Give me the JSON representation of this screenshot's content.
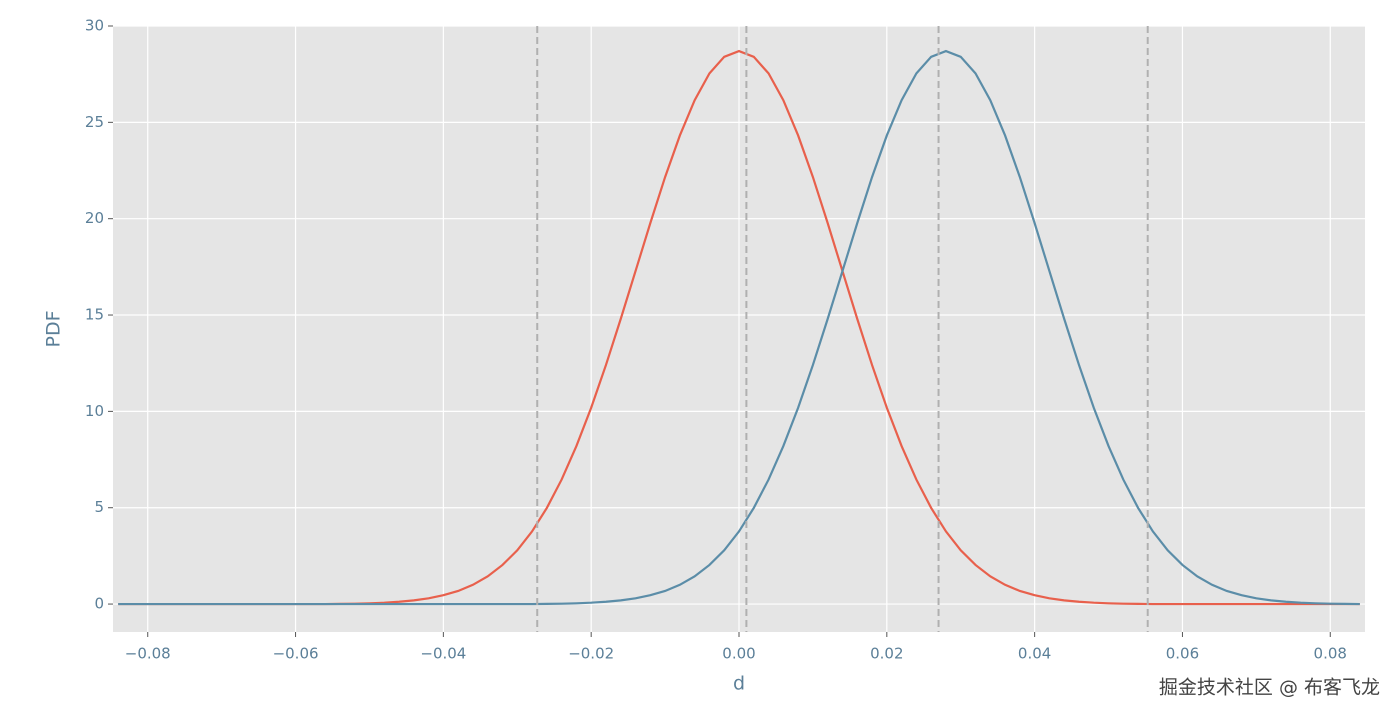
{
  "chart_data": {
    "type": "line",
    "x_label": "d",
    "y_label": "PDF",
    "watermark": "掘金技术社区 @ 布客飞龙",
    "x": [
      -0.084,
      -0.082,
      -0.08,
      -0.078,
      -0.076,
      -0.074,
      -0.072,
      -0.07,
      -0.068,
      -0.066,
      -0.064,
      -0.062,
      -0.06,
      -0.058,
      -0.056,
      -0.054,
      -0.052,
      -0.05,
      -0.048,
      -0.046,
      -0.044,
      -0.042,
      -0.04,
      -0.038,
      -0.036,
      -0.034,
      -0.032,
      -0.03,
      -0.028,
      -0.026,
      -0.024,
      -0.022,
      -0.02,
      -0.018,
      -0.016,
      -0.014,
      -0.012,
      -0.01,
      -0.008,
      -0.006,
      -0.004,
      -0.002,
      0,
      0.002,
      0.004,
      0.006,
      0.008,
      0.01,
      0.012,
      0.014,
      0.016,
      0.018,
      0.02,
      0.022,
      0.024,
      0.026,
      0.028,
      0.03,
      0.032,
      0.034,
      0.036,
      0.038,
      0.04,
      0.042,
      0.044,
      0.046,
      0.048,
      0.05,
      0.052,
      0.054,
      0.056,
      0.058,
      0.06,
      0.062,
      0.064,
      0.066,
      0.068,
      0.07,
      0.072,
      0.074,
      0.076,
      0.078,
      0.08,
      0.082,
      0.084
    ],
    "series": [
      {
        "color": "#e8604c",
        "values": [
          0,
          0,
          0,
          0,
          0,
          0,
          0,
          0,
          0,
          0,
          0,
          0,
          0,
          0,
          0,
          0.01,
          0.02,
          0.04,
          0.07,
          0.12,
          0.19,
          0.3,
          0.46,
          0.68,
          1.0,
          1.44,
          2.03,
          2.79,
          3.77,
          4.99,
          6.46,
          8.2,
          10.19,
          12.41,
          14.8,
          17.28,
          19.77,
          22.16,
          24.32,
          26.15,
          27.54,
          28.4,
          28.7,
          28.4,
          27.54,
          26.15,
          24.32,
          22.16,
          19.77,
          17.28,
          14.8,
          12.41,
          10.19,
          8.2,
          6.46,
          4.99,
          3.77,
          2.79,
          2.03,
          1.44,
          1.0,
          0.68,
          0.46,
          0.3,
          0.19,
          0.12,
          0.07,
          0.04,
          0.02,
          0.01,
          0,
          0,
          0,
          0,
          0,
          0,
          0,
          0,
          0,
          0,
          0,
          0,
          0,
          0,
          0
        ]
      },
      {
        "color": "#5b8da8",
        "values": [
          0,
          0,
          0,
          0,
          0,
          0,
          0,
          0,
          0,
          0,
          0,
          0,
          0,
          0,
          0,
          0,
          0,
          0,
          0,
          0,
          0,
          0,
          0,
          0,
          0,
          0,
          0,
          0,
          0,
          0.01,
          0.02,
          0.04,
          0.07,
          0.12,
          0.19,
          0.3,
          0.46,
          0.68,
          1.0,
          1.44,
          2.03,
          2.79,
          3.77,
          4.99,
          6.46,
          8.2,
          10.19,
          12.41,
          14.8,
          17.28,
          19.77,
          22.16,
          24.32,
          26.15,
          27.54,
          28.4,
          28.7,
          28.4,
          27.54,
          26.15,
          24.32,
          22.16,
          19.77,
          17.28,
          14.8,
          12.41,
          10.19,
          8.2,
          6.46,
          4.99,
          3.77,
          2.79,
          2.03,
          1.44,
          1.0,
          0.68,
          0.46,
          0.3,
          0.19,
          0.12,
          0.07,
          0.04,
          0.02,
          0.01,
          0
        ]
      }
    ],
    "vlines": [
      -0.0273,
      0.001,
      0.027,
      0.0553
    ],
    "vline_color": "#b0b0b0",
    "xlim": [
      -0.0847,
      0.0847
    ],
    "ylim": [
      -1.45,
      30
    ],
    "xticks": [
      {
        "value": -0.08,
        "label": "−0.08"
      },
      {
        "value": -0.06,
        "label": "−0.06"
      },
      {
        "value": -0.04,
        "label": "−0.04"
      },
      {
        "value": -0.02,
        "label": "−0.02"
      },
      {
        "value": 0,
        "label": "0.00"
      },
      0.02,
      0.04,
      0.06,
      0.08
    ],
    "yticks": [
      0,
      5,
      10,
      15,
      20,
      25,
      30
    ],
    "grid": true,
    "background": "#e5e5e5"
  }
}
